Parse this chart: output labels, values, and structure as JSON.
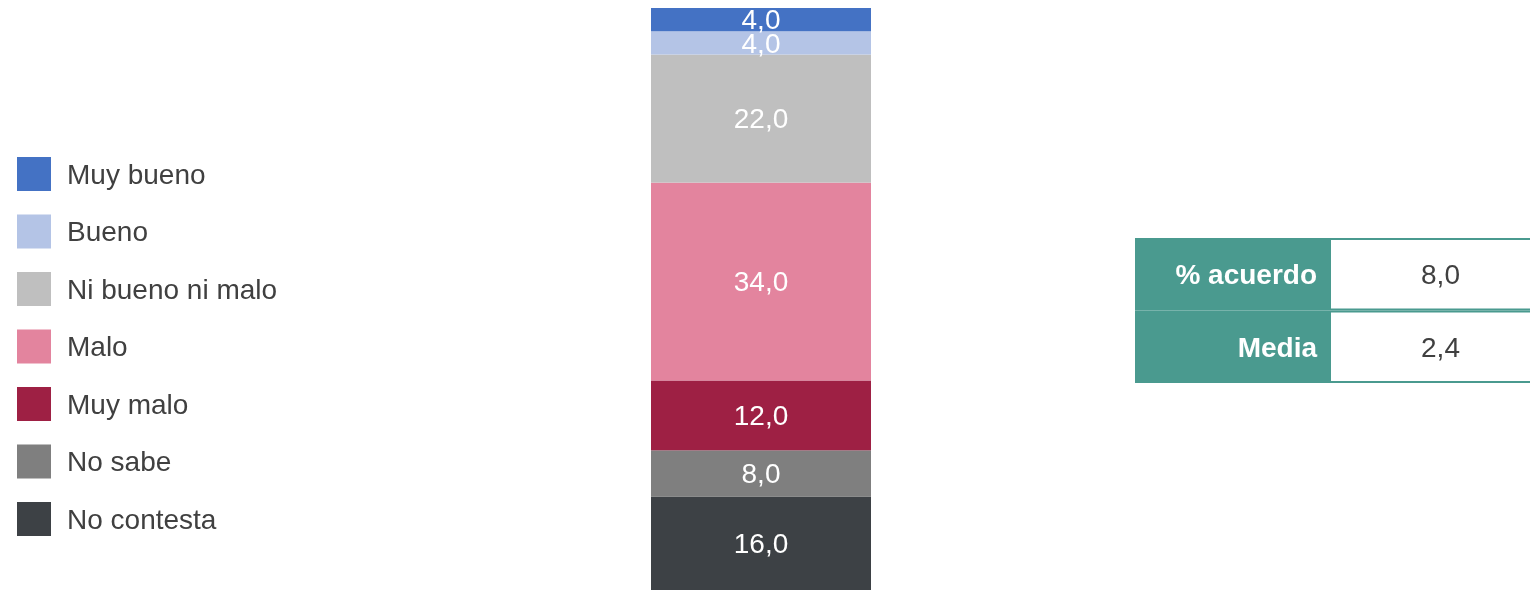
{
  "chart_data": [
    {
      "type": "bar",
      "stacked": true,
      "legend": "left",
      "categories": [
        null
      ],
      "series": [
        {
          "name": "No contesta",
          "color": "#3d4145",
          "values": [
            16.0
          ],
          "value_labels": [
            "16,0"
          ]
        },
        {
          "name": "No sabe",
          "color": "#7f7f7f",
          "values": [
            8.0
          ],
          "value_labels": [
            "8,0"
          ]
        },
        {
          "name": "Muy malo",
          "color": "#9e2044",
          "values": [
            12.0
          ],
          "value_labels": [
            "12,0"
          ]
        },
        {
          "name": "Malo",
          "color": "#e3849e",
          "values": [
            34.0
          ],
          "value_labels": [
            "34,0"
          ]
        },
        {
          "name": "Ni bueno ni malo",
          "color": "#bfbfbf",
          "values": [
            22.0
          ],
          "value_labels": [
            "22,0"
          ]
        },
        {
          "name": "Bueno",
          "color": "#b4c4e6",
          "values": [
            4.0
          ],
          "value_labels": [
            "4,0"
          ]
        },
        {
          "name": "Muy bueno",
          "color": "#4472c4",
          "values": [
            4.0
          ],
          "value_labels": [
            "4,0"
          ]
        }
      ]
    },
    {
      "type": "other",
      "color": "#4a9a8f",
      "categories": [
        "% acuerdo",
        "Media"
      ],
      "value_labels": [
        "8,0",
        "2,4"
      ]
    }
  ]
}
